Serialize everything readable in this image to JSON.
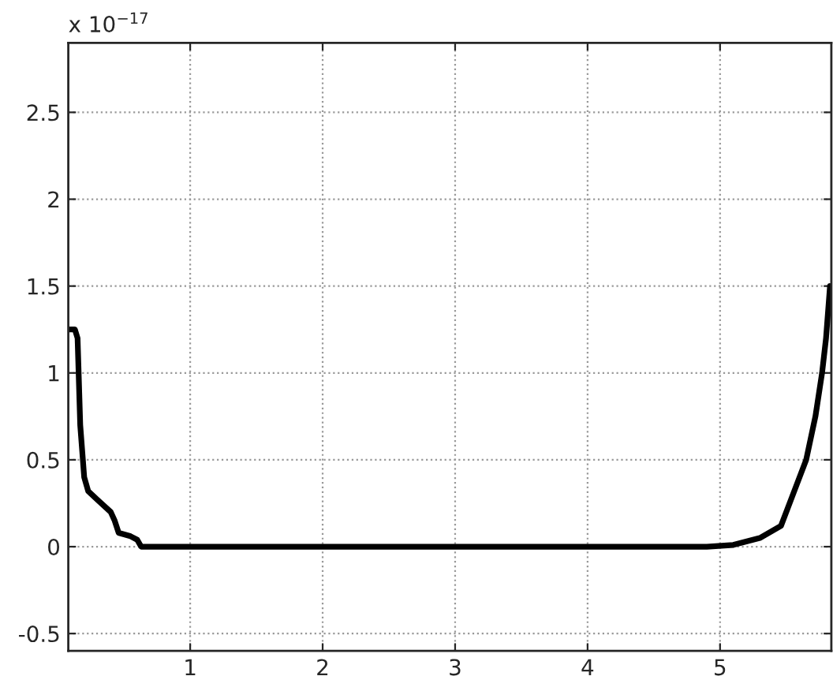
{
  "chart_data": {
    "type": "line",
    "annotations": [
      "x 10$^{−17}$"
    ],
    "x": [
      0.08,
      0.13,
      0.15,
      0.17,
      0.2,
      0.23,
      0.3,
      0.4,
      0.43,
      0.46,
      0.55,
      0.6,
      0.63,
      1.5,
      2.5,
      3.5,
      4.5,
      4.9,
      5.1,
      5.3,
      5.46,
      5.55,
      5.65,
      5.72,
      5.77,
      5.8,
      5.83
    ],
    "series": [
      {
        "color": "#000000",
        "values": [
          1.25,
          1.25,
          1.2,
          0.7,
          0.4,
          0.32,
          0.27,
          0.2,
          0.15,
          0.08,
          0.06,
          0.04,
          0,
          0,
          0,
          0,
          0,
          0,
          0.01,
          0.05,
          0.12,
          0.3,
          0.5,
          0.75,
          1.0,
          1.2,
          1.5
        ]
      }
    ],
    "xlim": [
      0.08,
      5.84
    ],
    "ylim": [
      -0.6,
      2.9
    ],
    "xticks": [
      1,
      2,
      3,
      4,
      5
    ],
    "yticks": [
      -0.5,
      0,
      0.5,
      1,
      1.5,
      2,
      2.5
    ],
    "grid": true,
    "line_style": "solid",
    "marker": "none",
    "legend": false
  }
}
